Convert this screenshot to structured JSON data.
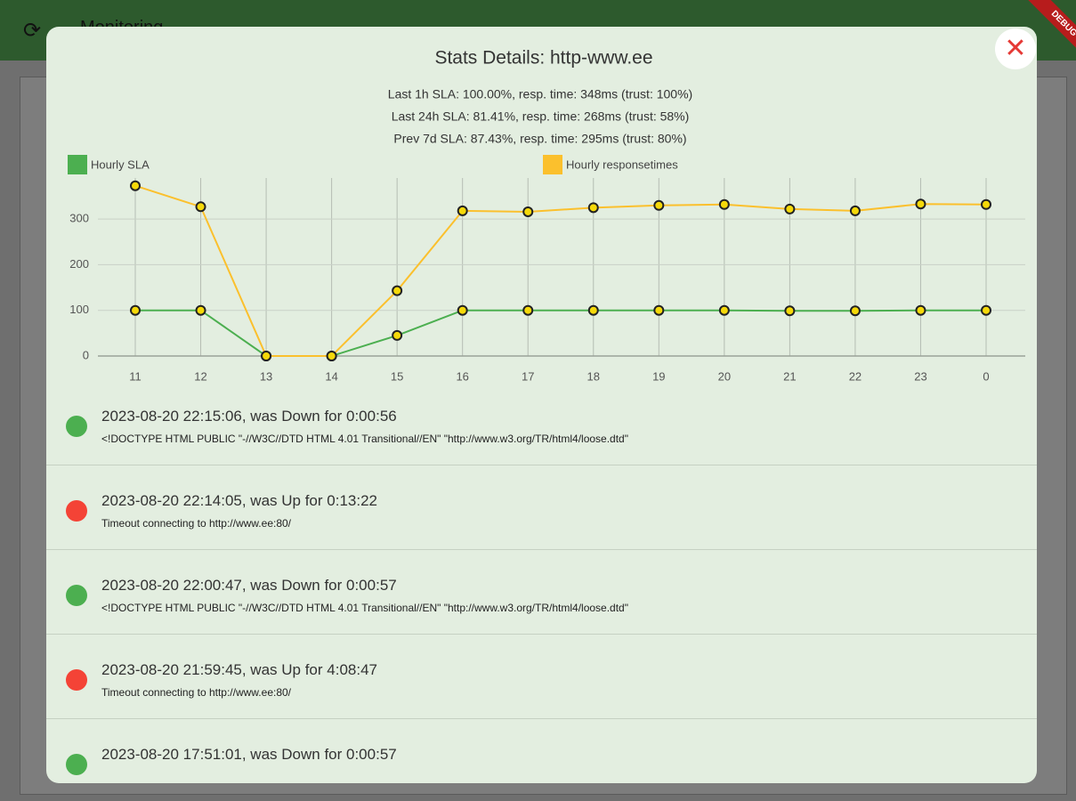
{
  "app": {
    "title": "Monitoring",
    "banner": "DEBUG"
  },
  "dialog": {
    "title": "Stats Details: http-www.ee",
    "stats": [
      "Last 1h SLA: 100.00%, resp. time: 348ms (trust: 100%)",
      "Last 24h SLA: 81.41%, resp. time: 268ms (trust: 58%)",
      "Prev 7d SLA: 87.43%, resp. time: 295ms (trust: 80%)"
    ],
    "close": "✕",
    "events": [
      {
        "title": "2023-08-20 22:15:06, was Down for 0:00:56",
        "detail": "<!DOCTYPE HTML PUBLIC \"-//W3C//DTD HTML 4.01 Transitional//EN\" \"http://www.w3.org/TR/html4/loose.dtd\"",
        "color": "#4caf50"
      },
      {
        "title": "2023-08-20 22:14:05, was Up for 0:13:22",
        "detail": "Timeout connecting to http://www.ee:80/",
        "color": "#f44336"
      },
      {
        "title": "2023-08-20 22:00:47, was Down for 0:00:57",
        "detail": "<!DOCTYPE HTML PUBLIC \"-//W3C//DTD HTML 4.01 Transitional//EN\" \"http://www.w3.org/TR/html4/loose.dtd\"",
        "color": "#4caf50"
      },
      {
        "title": "2023-08-20 21:59:45, was Up for 4:08:47",
        "detail": "Timeout connecting to http://www.ee:80/",
        "color": "#f44336"
      },
      {
        "title": "2023-08-20 17:51:01, was Down for 0:00:57",
        "detail": "",
        "color": "#4caf50"
      }
    ]
  },
  "chart_data": {
    "type": "line",
    "categories": [
      "11",
      "12",
      "13",
      "14",
      "15",
      "16",
      "17",
      "18",
      "19",
      "20",
      "21",
      "22",
      "23",
      "0"
    ],
    "series": [
      {
        "name": "Hourly SLA",
        "color": "#4caf50",
        "values": [
          100,
          100,
          0,
          0,
          45,
          100,
          100,
          100,
          100,
          100,
          99,
          99,
          100,
          100
        ]
      },
      {
        "name": "Hourly responsetimes",
        "color": "#fbc02d",
        "values": [
          373,
          327,
          0,
          0,
          143,
          318,
          316,
          325,
          330,
          332,
          322,
          318,
          333,
          332
        ]
      }
    ],
    "ylim": [
      0,
      390
    ],
    "yticks": [
      0,
      100,
      200,
      300
    ],
    "grid": true
  }
}
